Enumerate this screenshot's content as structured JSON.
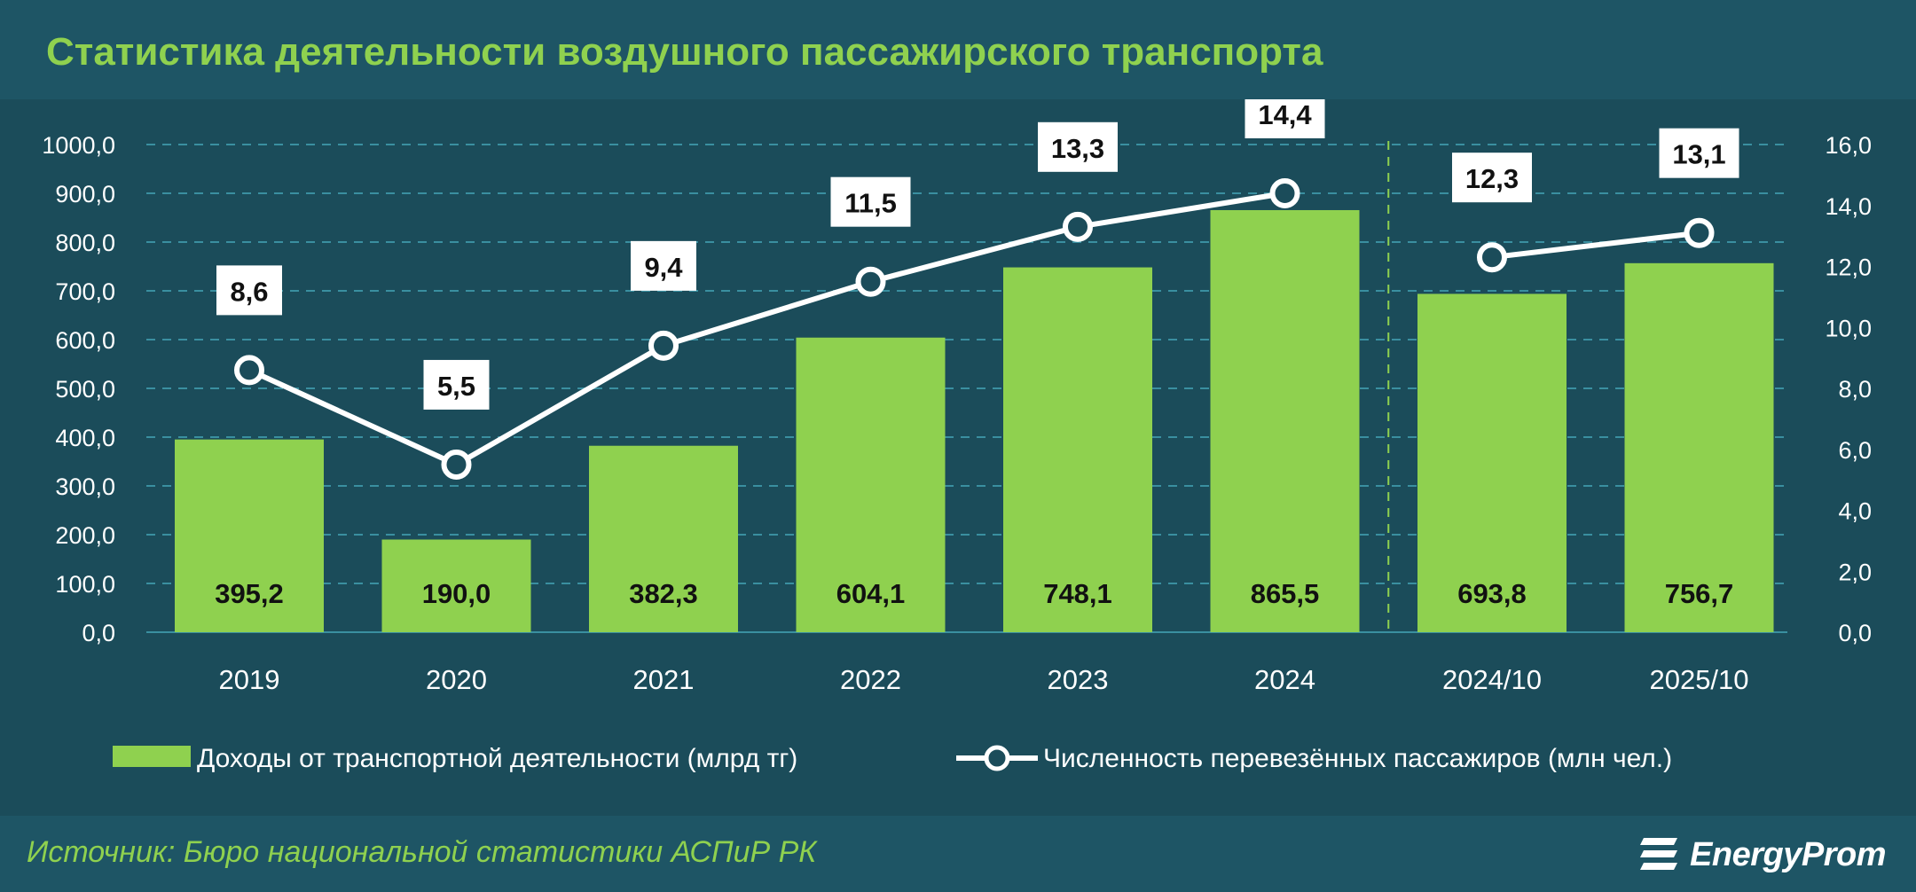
{
  "title": "Статистика деятельности воздушного пассажирского транспорта",
  "source": "Источник: Бюро национальной статистики АСПиР РК",
  "logo_text": "EnergyProm",
  "colors": {
    "background": "#1b4c5a",
    "bar": "#8fd14f",
    "line": "#ffffff",
    "title": "#8fd14f",
    "text": "#ffffff"
  },
  "chart_data": {
    "type": "bar",
    "categories": [
      "2019",
      "2020",
      "2021",
      "2022",
      "2023",
      "2024",
      "2024/10",
      "2025/10"
    ],
    "y_left": {
      "min": 0,
      "max": 1000,
      "step": 100,
      "tick_labels": [
        "0,0",
        "100,0",
        "200,0",
        "300,0",
        "400,0",
        "500,0",
        "600,0",
        "700,0",
        "800,0",
        "900,0",
        "1000,0"
      ]
    },
    "y_right": {
      "min": 0,
      "max": 16,
      "step": 2,
      "tick_labels": [
        "0,0",
        "2,0",
        "4,0",
        "6,0",
        "8,0",
        "10,0",
        "12,0",
        "14,0",
        "16,0"
      ]
    },
    "grid": true,
    "legend_position": "bottom",
    "series": [
      {
        "name": "Доходы от транспортной деятельности (млрд тг)",
        "type": "bar",
        "axis": "left",
        "values": [
          395.2,
          190.0,
          382.3,
          604.1,
          748.1,
          865.5,
          693.8,
          756.7
        ],
        "labels": [
          "395,2",
          "190,0",
          "382,3",
          "604,1",
          "748,1",
          "865,5",
          "693,8",
          "756,7"
        ]
      },
      {
        "name": "Численность перевезённых пассажиров (млн чел.)",
        "type": "line",
        "axis": "right",
        "values": [
          8.6,
          5.5,
          9.4,
          11.5,
          13.3,
          14.4,
          12.3,
          13.1
        ],
        "labels": [
          "8,6",
          "5,5",
          "9,4",
          "11,5",
          "13,3",
          "14,4",
          "12,3",
          "13,1"
        ],
        "segments": [
          [
            0,
            5
          ],
          [
            6,
            7
          ]
        ]
      }
    ],
    "separator_after_category": "2024"
  }
}
